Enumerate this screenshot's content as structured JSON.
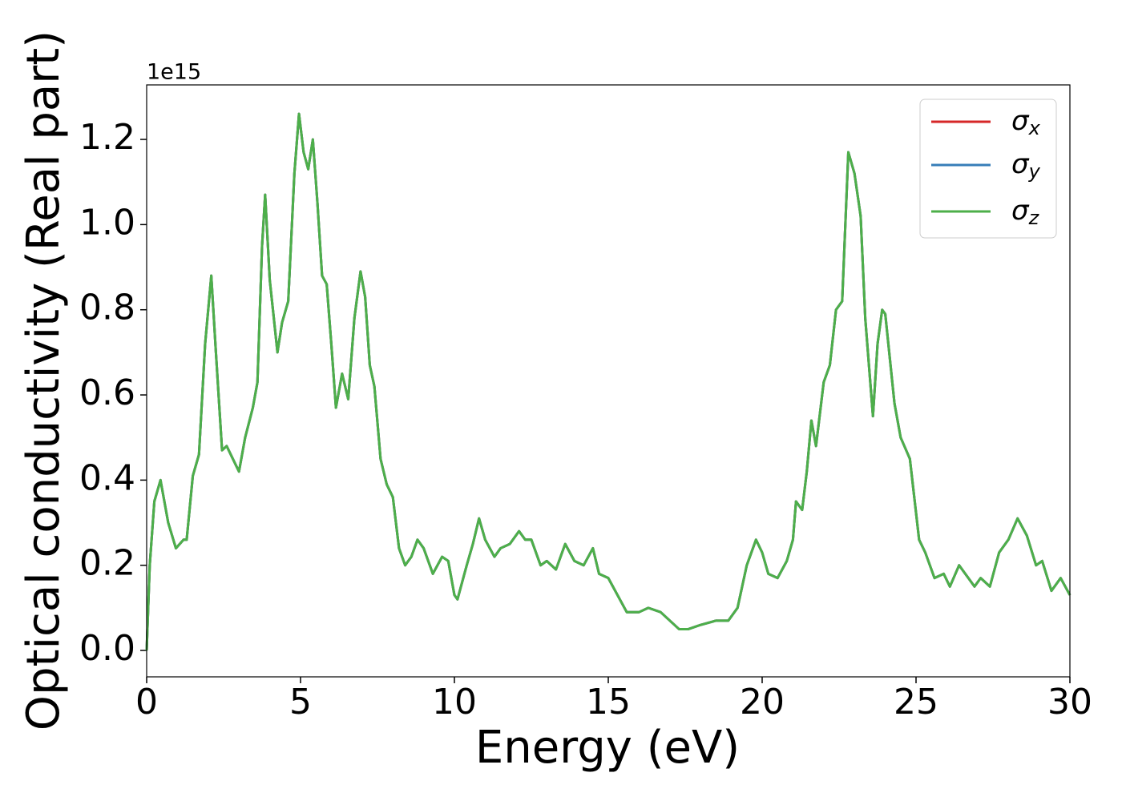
{
  "chart_data": {
    "type": "line",
    "x_label": "Energy (eV)",
    "y_label": "Optical conductivity (Real part)",
    "y_offset_label": "1e15",
    "x": [
      0,
      0.1,
      0.25,
      0.45,
      0.7,
      0.95,
      1.2,
      1.3,
      1.5,
      1.7,
      1.9,
      2.1,
      2.25,
      2.45,
      2.6,
      2.8,
      3.0,
      3.2,
      3.45,
      3.6,
      3.75,
      3.85,
      4.0,
      4.25,
      4.4,
      4.6,
      4.8,
      4.95,
      5.1,
      5.25,
      5.4,
      5.55,
      5.7,
      5.85,
      6.0,
      6.15,
      6.35,
      6.55,
      6.75,
      6.95,
      7.1,
      7.25,
      7.4,
      7.6,
      7.8,
      8.0,
      8.2,
      8.4,
      8.6,
      8.8,
      9.0,
      9.3,
      9.6,
      9.8,
      10.0,
      10.1,
      10.4,
      10.6,
      10.8,
      11.0,
      11.3,
      11.5,
      11.8,
      12.1,
      12.3,
      12.5,
      12.8,
      13.0,
      13.3,
      13.6,
      13.9,
      14.2,
      14.5,
      14.7,
      15.0,
      15.3,
      15.6,
      16.0,
      16.3,
      16.7,
      17.0,
      17.3,
      17.6,
      18.0,
      18.5,
      18.9,
      19.2,
      19.5,
      19.8,
      20.0,
      20.2,
      20.5,
      20.8,
      21.0,
      21.1,
      21.3,
      21.45,
      21.6,
      21.75,
      22.0,
      22.2,
      22.4,
      22.6,
      22.8,
      23.0,
      23.2,
      23.35,
      23.6,
      23.75,
      23.9,
      24.0,
      24.3,
      24.5,
      24.8,
      25.1,
      25.3,
      25.6,
      25.9,
      26.1,
      26.4,
      26.7,
      26.9,
      27.1,
      27.4,
      27.7,
      28.0,
      28.3,
      28.6,
      28.9,
      29.1,
      29.4,
      29.7,
      30.0
    ],
    "series": [
      {
        "name": "σx",
        "color": "#d62728",
        "values": [
          0.0,
          0.2,
          0.35,
          0.4,
          0.3,
          0.24,
          0.26,
          0.26,
          0.41,
          0.46,
          0.72,
          0.88,
          0.7,
          0.47,
          0.48,
          0.45,
          0.42,
          0.5,
          0.57,
          0.63,
          0.95,
          1.07,
          0.87,
          0.7,
          0.77,
          0.82,
          1.12,
          1.26,
          1.17,
          1.13,
          1.2,
          1.05,
          0.88,
          0.86,
          0.72,
          0.57,
          0.65,
          0.59,
          0.78,
          0.89,
          0.83,
          0.67,
          0.62,
          0.45,
          0.39,
          0.36,
          0.24,
          0.2,
          0.22,
          0.26,
          0.24,
          0.18,
          0.22,
          0.21,
          0.13,
          0.12,
          0.2,
          0.25,
          0.31,
          0.26,
          0.22,
          0.24,
          0.25,
          0.28,
          0.26,
          0.26,
          0.2,
          0.21,
          0.19,
          0.25,
          0.21,
          0.2,
          0.24,
          0.18,
          0.17,
          0.13,
          0.09,
          0.09,
          0.1,
          0.09,
          0.07,
          0.05,
          0.05,
          0.06,
          0.07,
          0.07,
          0.1,
          0.2,
          0.26,
          0.23,
          0.18,
          0.17,
          0.21,
          0.26,
          0.35,
          0.33,
          0.42,
          0.54,
          0.48,
          0.63,
          0.67,
          0.8,
          0.82,
          1.17,
          1.12,
          1.02,
          0.78,
          0.55,
          0.72,
          0.8,
          0.79,
          0.58,
          0.5,
          0.45,
          0.26,
          0.23,
          0.17,
          0.18,
          0.15,
          0.2,
          0.17,
          0.15,
          0.17,
          0.15,
          0.23,
          0.26,
          0.31,
          0.27,
          0.2,
          0.21,
          0.14,
          0.17,
          0.13
        ]
      },
      {
        "name": "σy",
        "color": "#377eb8",
        "values": [
          0.0,
          0.2,
          0.35,
          0.4,
          0.3,
          0.24,
          0.26,
          0.26,
          0.41,
          0.46,
          0.72,
          0.88,
          0.7,
          0.47,
          0.48,
          0.45,
          0.42,
          0.5,
          0.57,
          0.63,
          0.95,
          1.07,
          0.87,
          0.7,
          0.77,
          0.82,
          1.12,
          1.26,
          1.17,
          1.13,
          1.2,
          1.05,
          0.88,
          0.86,
          0.72,
          0.57,
          0.65,
          0.59,
          0.78,
          0.89,
          0.83,
          0.67,
          0.62,
          0.45,
          0.39,
          0.36,
          0.24,
          0.2,
          0.22,
          0.26,
          0.24,
          0.18,
          0.22,
          0.21,
          0.13,
          0.12,
          0.2,
          0.25,
          0.31,
          0.26,
          0.22,
          0.24,
          0.25,
          0.28,
          0.26,
          0.26,
          0.2,
          0.21,
          0.19,
          0.25,
          0.21,
          0.2,
          0.24,
          0.18,
          0.17,
          0.13,
          0.09,
          0.09,
          0.1,
          0.09,
          0.07,
          0.05,
          0.05,
          0.06,
          0.07,
          0.07,
          0.1,
          0.2,
          0.26,
          0.23,
          0.18,
          0.17,
          0.21,
          0.26,
          0.35,
          0.33,
          0.42,
          0.54,
          0.48,
          0.63,
          0.67,
          0.8,
          0.82,
          1.17,
          1.12,
          1.02,
          0.78,
          0.55,
          0.72,
          0.8,
          0.79,
          0.58,
          0.5,
          0.45,
          0.26,
          0.23,
          0.17,
          0.18,
          0.15,
          0.2,
          0.17,
          0.15,
          0.17,
          0.15,
          0.23,
          0.26,
          0.31,
          0.27,
          0.2,
          0.21,
          0.14,
          0.17,
          0.13
        ]
      },
      {
        "name": "σz",
        "color": "#4daf4a",
        "values": [
          0.0,
          0.2,
          0.35,
          0.4,
          0.3,
          0.24,
          0.26,
          0.26,
          0.41,
          0.46,
          0.72,
          0.88,
          0.7,
          0.47,
          0.48,
          0.45,
          0.42,
          0.5,
          0.57,
          0.63,
          0.95,
          1.07,
          0.87,
          0.7,
          0.77,
          0.82,
          1.12,
          1.26,
          1.17,
          1.13,
          1.2,
          1.05,
          0.88,
          0.86,
          0.72,
          0.57,
          0.65,
          0.59,
          0.78,
          0.89,
          0.83,
          0.67,
          0.62,
          0.45,
          0.39,
          0.36,
          0.24,
          0.2,
          0.22,
          0.26,
          0.24,
          0.18,
          0.22,
          0.21,
          0.13,
          0.12,
          0.2,
          0.25,
          0.31,
          0.26,
          0.22,
          0.24,
          0.25,
          0.28,
          0.26,
          0.26,
          0.2,
          0.21,
          0.19,
          0.25,
          0.21,
          0.2,
          0.24,
          0.18,
          0.17,
          0.13,
          0.09,
          0.09,
          0.1,
          0.09,
          0.07,
          0.05,
          0.05,
          0.06,
          0.07,
          0.07,
          0.1,
          0.2,
          0.26,
          0.23,
          0.18,
          0.17,
          0.21,
          0.26,
          0.35,
          0.33,
          0.42,
          0.54,
          0.48,
          0.63,
          0.67,
          0.8,
          0.82,
          1.17,
          1.12,
          1.02,
          0.78,
          0.55,
          0.72,
          0.8,
          0.79,
          0.58,
          0.5,
          0.45,
          0.26,
          0.23,
          0.17,
          0.18,
          0.15,
          0.2,
          0.17,
          0.15,
          0.17,
          0.15,
          0.23,
          0.26,
          0.31,
          0.27,
          0.2,
          0.21,
          0.14,
          0.17,
          0.13
        ]
      }
    ],
    "xlim": [
      0,
      30
    ],
    "xticks": [
      0,
      5,
      10,
      15,
      20,
      25,
      30
    ],
    "ylim": [
      -0.062,
      1.328
    ],
    "yticks": [
      {
        "value": 0,
        "label": "0.0"
      },
      0.2,
      0.4,
      0.6,
      0.8,
      {
        "value": 1,
        "label": "1.0"
      },
      1.2
    ],
    "legend": "upper right"
  }
}
